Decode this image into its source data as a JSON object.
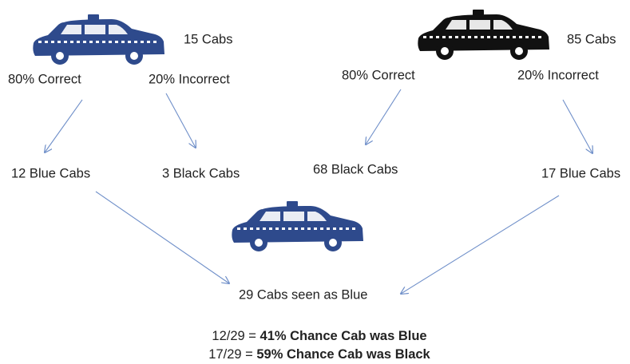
{
  "left": {
    "count": "15 Cabs",
    "correct": "80% Correct",
    "incorrect": "20% Incorrect",
    "outcome_correct": "12 Blue Cabs",
    "outcome_incorrect": "3 Black Cabs"
  },
  "right": {
    "count": "85 Cabs",
    "correct": "80% Correct",
    "incorrect": "20% Incorrect",
    "outcome_correct": "68 Black Cabs",
    "outcome_incorrect": "17 Blue Cabs"
  },
  "result": "29 Cabs seen as Blue",
  "conclusions": [
    {
      "formula": "12/29 = ",
      "statement": "41% Chance Cab was Blue"
    },
    {
      "formula": "17/29 = ",
      "statement": "59% Chance Cab was Black"
    }
  ]
}
